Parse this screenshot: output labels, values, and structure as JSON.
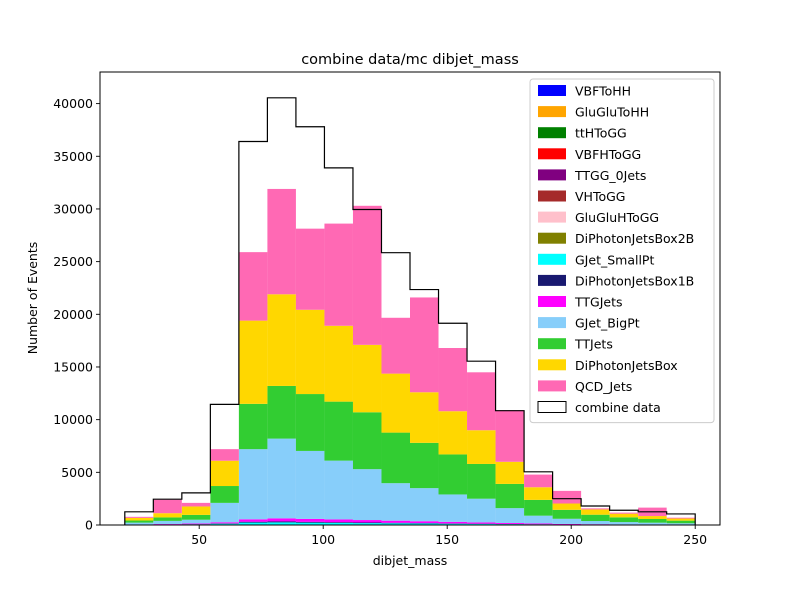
{
  "chart_data": {
    "type": "bar",
    "stacked": true,
    "histogram": true,
    "title": "combine data/mc dibjet_mass",
    "xlabel": "dibjet_mass",
    "ylabel": "Number of Events",
    "xlim": [
      10,
      260
    ],
    "ylim": [
      0,
      43000
    ],
    "xticks": [
      50,
      100,
      150,
      200,
      250
    ],
    "yticks": [
      0,
      5000,
      10000,
      15000,
      20000,
      25000,
      30000,
      35000,
      40000
    ],
    "grid": false,
    "legend": "top-right",
    "bin_edges": [
      20,
      31.5,
      43,
      54.5,
      66,
      77.5,
      89,
      100.5,
      112,
      123.5,
      135,
      146.5,
      158,
      169.5,
      181,
      192.5,
      204,
      215.5,
      227,
      238.5,
      250
    ],
    "series": [
      {
        "name": "VBFToHH",
        "color": "#0000ff",
        "values": [
          0,
          0,
          0,
          0,
          0,
          0,
          0,
          0,
          0,
          0,
          0,
          0,
          0,
          0,
          0,
          0,
          0,
          0,
          0,
          0
        ]
      },
      {
        "name": "GluGluToHH",
        "color": "#ffa500",
        "values": [
          0,
          0,
          0,
          0,
          0,
          0,
          0,
          0,
          0,
          0,
          0,
          0,
          0,
          0,
          0,
          0,
          0,
          0,
          0,
          0
        ]
      },
      {
        "name": "ttHToGG",
        "color": "#008000",
        "values": [
          0,
          0,
          0,
          0,
          0,
          0,
          0,
          0,
          0,
          0,
          0,
          0,
          0,
          0,
          0,
          0,
          0,
          0,
          0,
          0
        ]
      },
      {
        "name": "VBFHToGG",
        "color": "#ff0000",
        "values": [
          0,
          0,
          0,
          0,
          0,
          0,
          0,
          0,
          0,
          0,
          0,
          0,
          0,
          0,
          0,
          0,
          0,
          0,
          0,
          0
        ]
      },
      {
        "name": "TTGG_0Jets",
        "color": "#800080",
        "values": [
          0,
          0,
          0,
          0,
          0,
          0,
          0,
          0,
          0,
          0,
          0,
          0,
          0,
          0,
          0,
          0,
          0,
          0,
          0,
          0
        ]
      },
      {
        "name": "VHToGG",
        "color": "#a52a2a",
        "values": [
          0,
          0,
          0,
          0,
          0,
          0,
          0,
          0,
          0,
          0,
          0,
          0,
          0,
          0,
          0,
          0,
          0,
          0,
          0,
          0
        ]
      },
      {
        "name": "GluGluHToGG",
        "color": "#ffc0cb",
        "values": [
          0,
          0,
          0,
          0,
          0,
          0,
          0,
          0,
          0,
          0,
          0,
          0,
          0,
          0,
          0,
          0,
          0,
          0,
          0,
          0
        ]
      },
      {
        "name": "DiPhotonJetsBox2B",
        "color": "#808000",
        "values": [
          0,
          0,
          0,
          0,
          0,
          0,
          0,
          0,
          0,
          0,
          0,
          0,
          0,
          0,
          0,
          0,
          0,
          0,
          0,
          0
        ]
      },
      {
        "name": "GJet_SmallPt",
        "color": "#00ffff",
        "values": [
          20,
          40,
          60,
          120,
          230,
          250,
          220,
          200,
          180,
          160,
          140,
          120,
          100,
          80,
          60,
          40,
          30,
          20,
          20,
          10
        ]
      },
      {
        "name": "DiPhotonJetsBox1B",
        "color": "#191970",
        "values": [
          5,
          10,
          20,
          40,
          80,
          90,
          80,
          70,
          60,
          50,
          40,
          30,
          25,
          20,
          15,
          10,
          8,
          6,
          5,
          4
        ]
      },
      {
        "name": "TTGJets",
        "color": "#ff00ff",
        "values": [
          20,
          40,
          60,
          100,
          230,
          290,
          280,
          260,
          230,
          200,
          180,
          150,
          120,
          90,
          70,
          50,
          40,
          30,
          25,
          20
        ]
      },
      {
        "name": "GJet_BigPt",
        "color": "#87cefa",
        "values": [
          180,
          300,
          360,
          1840,
          6660,
          7570,
          6450,
          5580,
          4830,
          3560,
          3140,
          2600,
          2250,
          1410,
          740,
          490,
          300,
          220,
          170,
          130
        ]
      },
      {
        "name": "TTJets",
        "color": "#32cd32",
        "values": [
          200,
          330,
          460,
          1600,
          4300,
          5000,
          5400,
          5600,
          5400,
          4800,
          4300,
          3800,
          3300,
          2300,
          1500,
          850,
          600,
          450,
          350,
          250
        ]
      },
      {
        "name": "DiPhotonJetsBox",
        "color": "#ffd700",
        "values": [
          250,
          400,
          800,
          2400,
          7900,
          8700,
          8000,
          7200,
          6400,
          5600,
          4800,
          4100,
          3200,
          2100,
          1200,
          600,
          500,
          350,
          280,
          200
        ]
      },
      {
        "name": "QCD_Jets",
        "color": "#ff69b4",
        "values": [
          100,
          1280,
          340,
          1100,
          6500,
          10000,
          7700,
          9700,
          13200,
          5300,
          9000,
          6000,
          5500,
          4900,
          1200,
          1200,
          100,
          100,
          800,
          80
        ]
      }
    ],
    "data": {
      "name": "combine data",
      "color": "#000000",
      "values": [
        1250,
        2450,
        3050,
        11450,
        36400,
        40550,
        37800,
        33900,
        29950,
        25850,
        22350,
        19150,
        15550,
        10850,
        5050,
        2500,
        1800,
        1400,
        1250,
        1050
      ]
    }
  }
}
